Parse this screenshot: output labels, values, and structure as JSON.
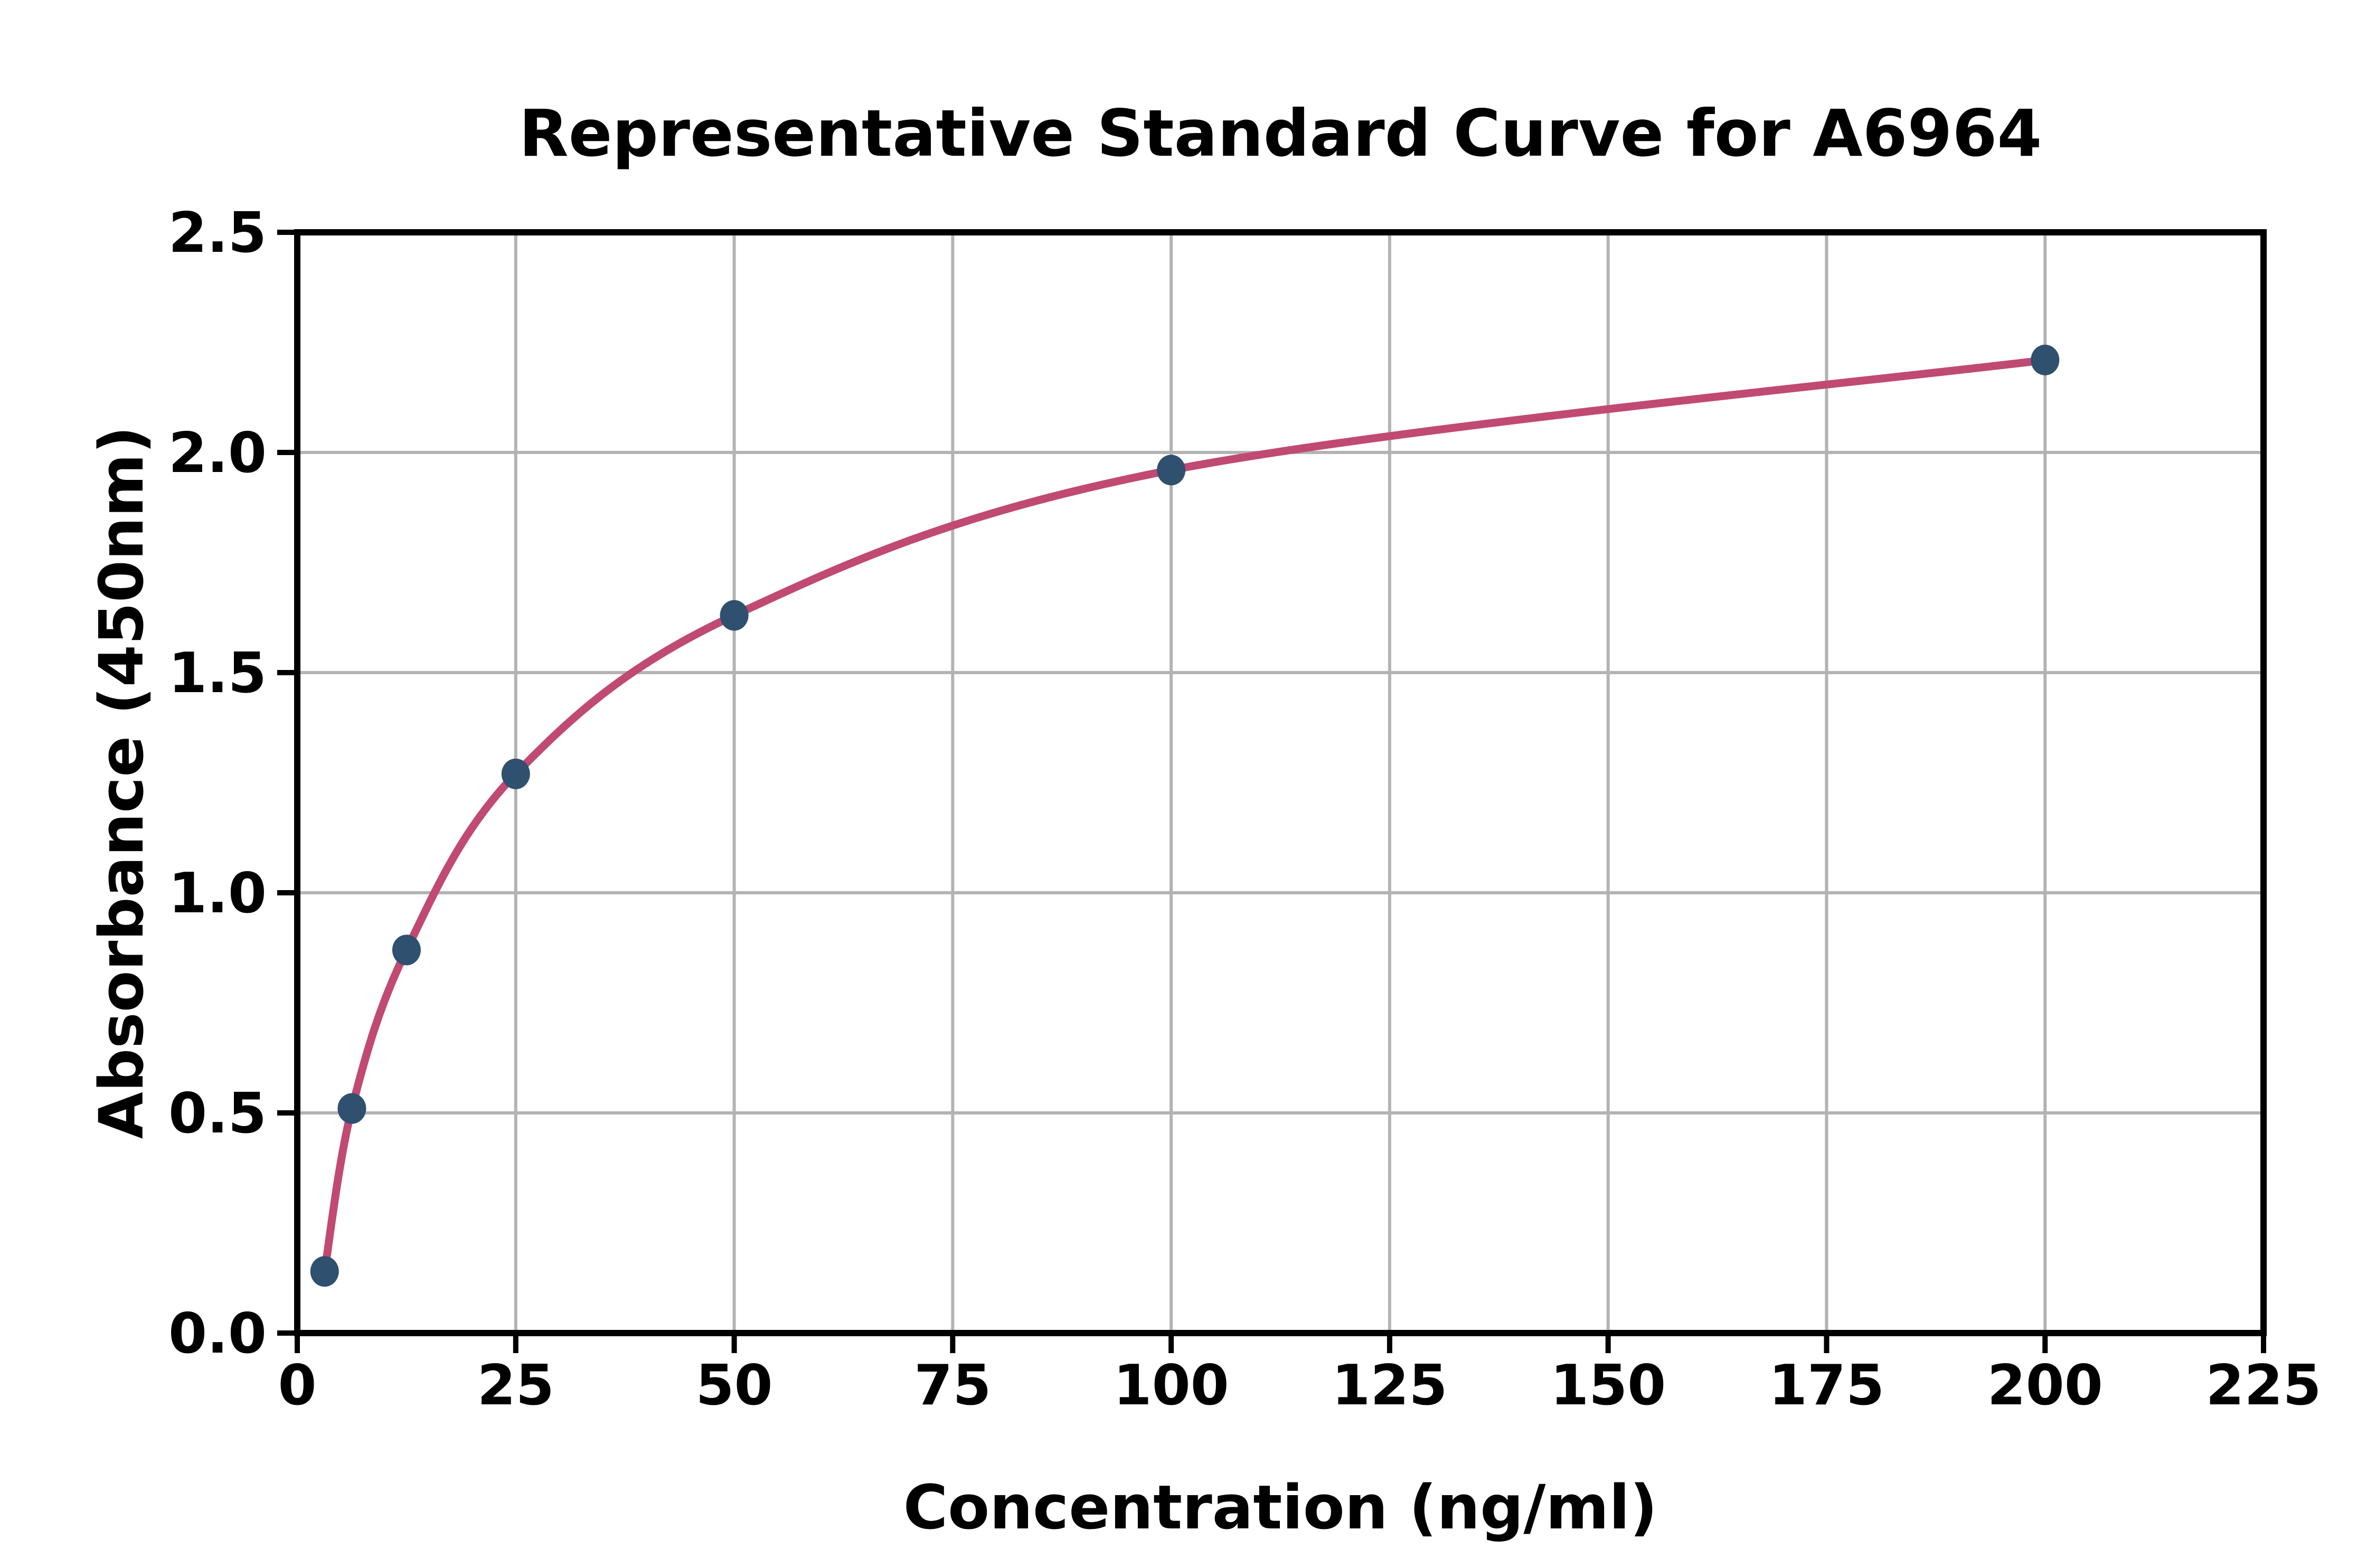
{
  "figure": {
    "background_color": "#ffffff"
  },
  "chart_data": {
    "type": "line",
    "title": "Representative Standard Curve for A6964",
    "xlabel": "Concentration (ng/ml)",
    "ylabel": "Absorbance (450nm)",
    "series": [
      {
        "name": "standard-curve",
        "x": [
          3.125,
          6.25,
          12.5,
          25,
          50,
          100,
          200
        ],
        "y": [
          0.14,
          0.51,
          0.87,
          1.27,
          1.63,
          1.96,
          2.21
        ]
      }
    ],
    "xlim": [
      0,
      225
    ],
    "ylim": [
      0,
      2.5
    ],
    "xticks": [
      0,
      25,
      50,
      75,
      100,
      125,
      150,
      175,
      200,
      225
    ],
    "xtick_labels": [
      "0",
      "25",
      "50",
      "75",
      "100",
      "125",
      "150",
      "175",
      "200",
      "225"
    ],
    "yticks": [
      0,
      0.5,
      1.0,
      1.5,
      2.0,
      2.5
    ],
    "ytick_labels": [
      "0.0",
      "0.5",
      "1.0",
      "1.5",
      "2.0",
      "2.5"
    ],
    "grid": true,
    "legend_position": "none",
    "curve_color": "#c04a72",
    "marker_color": "#2f506f",
    "grid_color": "#b3b3b3",
    "axis_color": "#000000"
  }
}
